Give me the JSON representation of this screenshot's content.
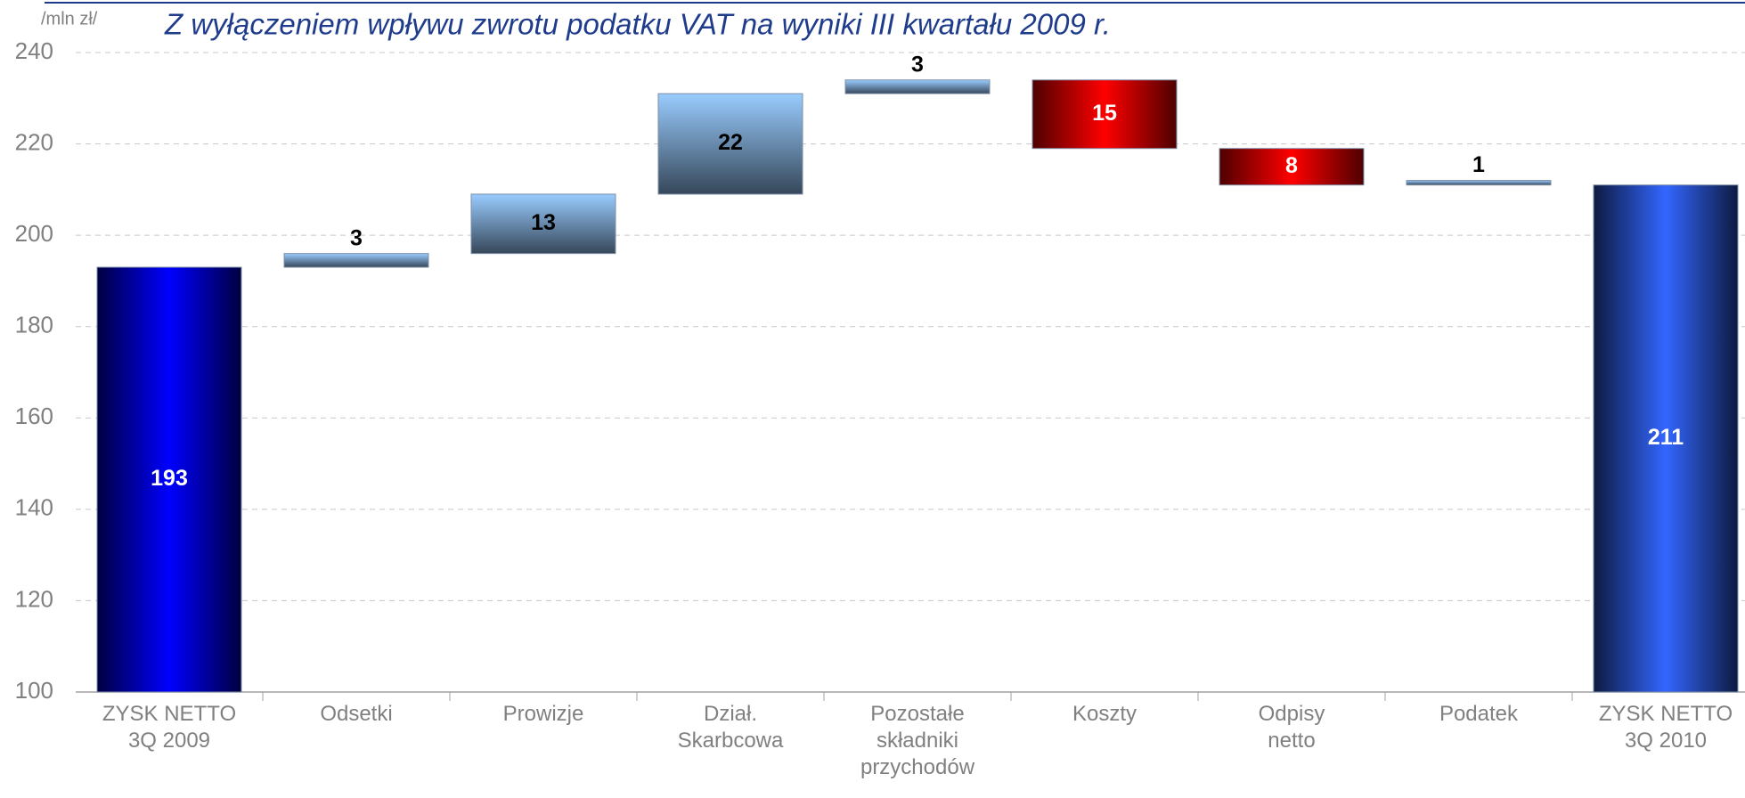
{
  "chart_data": {
    "type": "waterfall",
    "title": "Z wyłączeniem wpływu zwrotu podatku VAT na wyniki III kwartału 2009 r.",
    "unit_label": "/mln zł/",
    "categories": [
      "ZYSK NETTO\n3Q 2009",
      "Odsetki",
      "Prowizje",
      "Dział.\nSkarbcowa",
      "Pozostałe\nskładniki\nprzychodów",
      "Koszty",
      "Odpisy\nnetto",
      "Podatek",
      "ZYSK NETTO\n3Q 2010"
    ],
    "values": [
      193,
      3,
      13,
      22,
      3,
      -15,
      -8,
      1,
      211
    ],
    "value_labels": [
      "193",
      "3",
      "13",
      "22",
      "3",
      "15",
      "8",
      "1",
      "211"
    ],
    "colors": [
      "#0000ff",
      "#99ccff",
      "#99ccff",
      "#99ccff",
      "#99ccff",
      "#ff0000",
      "#ff0000",
      "#99ccff",
      "#3366ff"
    ],
    "ylim": [
      100,
      240
    ],
    "yticks": [
      100,
      120,
      140,
      160,
      180,
      200,
      220,
      240
    ],
    "grid": true
  }
}
